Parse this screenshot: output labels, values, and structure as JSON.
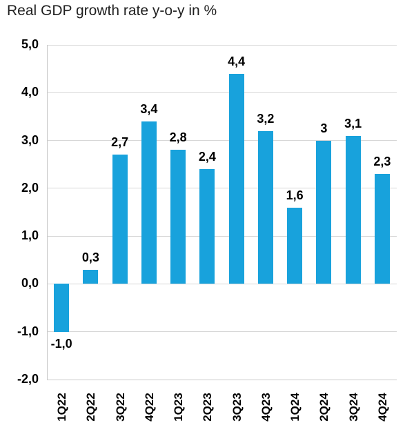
{
  "chart_data": {
    "type": "bar",
    "title": "Real GDP growth rate y-o-y in %",
    "categories": [
      "1Q22",
      "2Q22",
      "3Q22",
      "4Q22",
      "1Q23",
      "2Q23",
      "3Q23",
      "4Q23",
      "1Q24",
      "2Q24",
      "3Q24",
      "4Q24"
    ],
    "values": [
      -1.0,
      0.3,
      2.7,
      3.4,
      2.8,
      2.4,
      4.4,
      3.2,
      1.6,
      3.0,
      3.1,
      2.3
    ],
    "value_labels": [
      "-1,0",
      "0,3",
      "2,7",
      "3,4",
      "2,8",
      "2,4",
      "4,4",
      "3,2",
      "1,6",
      "3",
      "3,1",
      "2,3"
    ],
    "y_tick_labels": [
      "5,0",
      "4,0",
      "3,0",
      "2,0",
      "1,0",
      "0,0",
      "-1,0",
      "-2,0"
    ],
    "y_tick_values": [
      5,
      4,
      3,
      2,
      1,
      0,
      -1,
      -2
    ],
    "ylim": [
      -2,
      5
    ],
    "xlabel": "",
    "ylabel": "",
    "grid": true,
    "legend": "none",
    "decimal_separator": ",",
    "colors": {
      "bar": "#18a2dc",
      "gridline": "#d6d6d6",
      "axis_border": "#c9c9c9",
      "title_text": "#212121",
      "label_text": "#000000",
      "background": "#ffffff"
    }
  }
}
